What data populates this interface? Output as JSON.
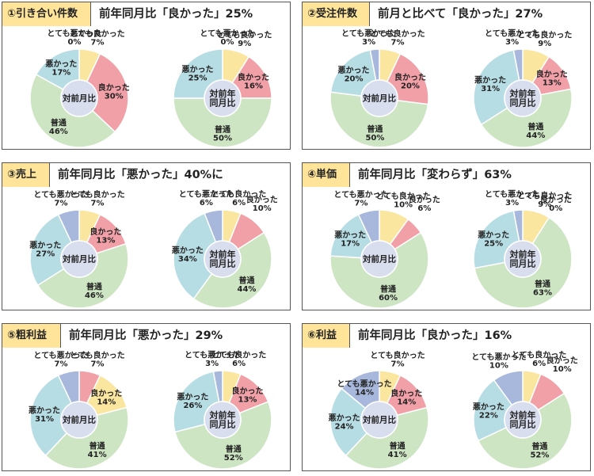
{
  "center_labels": {
    "single": "対前月比",
    "multi": [
      "対前年",
      "同月比"
    ]
  },
  "colors": {
    "very_bad": "#a7b8dc",
    "bad": "#b7dde4",
    "normal": "#cde5c3",
    "good": "#f2a0a8",
    "very_good": "#fbe6a0",
    "center": "#d9deef"
  },
  "panels": [
    {
      "badge": "①引き合い件数",
      "headline": "前年同月比「良かった」25%",
      "chart_data": [
        {
          "type": "pie",
          "center": "対前月比",
          "categories": [
            "とても良かった",
            "良かった",
            "普通",
            "悪かった",
            "とても悪かった"
          ],
          "values": [
            7,
            30,
            46,
            17,
            0
          ],
          "colors": [
            "very_good",
            "good",
            "normal",
            "bad",
            "very_bad"
          ]
        },
        {
          "type": "pie",
          "center": "対前年同月比",
          "categories": [
            "とても良かった",
            "良かった",
            "普通",
            "悪かった",
            "とても悪かった"
          ],
          "values": [
            9,
            16,
            50,
            25,
            0
          ],
          "colors": [
            "very_good",
            "good",
            "normal",
            "bad",
            "very_bad"
          ]
        }
      ]
    },
    {
      "badge": "②受注件数",
      "headline": "前月と比べて「良かった」27%",
      "chart_data": [
        {
          "type": "pie",
          "center": "対前月比",
          "categories": [
            "とても良かった",
            "良かった",
            "普通",
            "悪かった",
            "とても悪かった"
          ],
          "values": [
            7,
            20,
            50,
            20,
            3
          ],
          "colors": [
            "very_good",
            "good",
            "normal",
            "bad",
            "very_bad"
          ]
        },
        {
          "type": "pie",
          "center": "対前年同月比",
          "categories": [
            "とても良かった",
            "良かった",
            "普通",
            "悪かった",
            "とても悪かった"
          ],
          "values": [
            9,
            13,
            44,
            31,
            3
          ],
          "colors": [
            "very_good",
            "good",
            "normal",
            "bad",
            "very_bad"
          ]
        }
      ]
    },
    {
      "badge": "③売上",
      "headline": "前年同月比「悪かった」40%に",
      "chart_data": [
        {
          "type": "pie",
          "center": "対前月比",
          "categories": [
            "とても良かった",
            "良かった",
            "普通",
            "悪かった",
            "とても悪かった"
          ],
          "values": [
            7,
            13,
            46,
            27,
            7
          ],
          "colors": [
            "very_good",
            "good",
            "normal",
            "bad",
            "very_bad"
          ]
        },
        {
          "type": "pie",
          "center": "対前年同月比",
          "categories": [
            "とても良かった",
            "良かった",
            "普通",
            "悪かった",
            "とても悪かった"
          ],
          "values": [
            6,
            10,
            44,
            34,
            6
          ],
          "colors": [
            "very_good",
            "good",
            "normal",
            "bad",
            "very_bad"
          ]
        }
      ]
    },
    {
      "badge": "④単価",
      "headline": "前年同月比「変わらず」63%",
      "chart_data": [
        {
          "type": "pie",
          "center": "対前月比",
          "categories": [
            "とても良かった",
            "良かった",
            "普通",
            "悪かった",
            "とても悪かった"
          ],
          "values": [
            10,
            6,
            60,
            17,
            7
          ],
          "colors": [
            "very_good",
            "good",
            "normal",
            "bad",
            "very_bad"
          ]
        },
        {
          "type": "pie",
          "center": "対前年同月比",
          "categories": [
            "とても良かった",
            "良かった",
            "普通",
            "悪かった",
            "とても悪かった"
          ],
          "values": [
            9,
            0,
            63,
            25,
            3
          ],
          "colors": [
            "very_good",
            "good",
            "normal",
            "bad",
            "very_bad"
          ]
        }
      ]
    },
    {
      "badge": "⑤粗利益",
      "headline": "前年同月比「悪かった」29%",
      "chart_data": [
        {
          "type": "pie",
          "center": "対前月比",
          "categories": [
            "とても良かった",
            "良かった",
            "普通",
            "悪かった",
            "とても悪かった"
          ],
          "values": [
            7,
            14,
            41,
            31,
            7
          ],
          "colors": [
            "good",
            "very_good",
            "normal",
            "bad",
            "very_bad"
          ]
        },
        {
          "type": "pie",
          "center": "対前年同月比",
          "categories": [
            "とても良かった",
            "良かった",
            "普通",
            "悪かった",
            "とても悪かった"
          ],
          "values": [
            6,
            13,
            52,
            26,
            3
          ],
          "colors": [
            "very_good",
            "good",
            "normal",
            "bad",
            "very_bad"
          ]
        }
      ]
    },
    {
      "badge": "⑥利益",
      "headline": "前年同月比「良かった」16%",
      "chart_data": [
        {
          "type": "pie",
          "center": "対前月比",
          "categories": [
            "とても良かった",
            "良かった",
            "普通",
            "悪かった",
            "とても悪かった"
          ],
          "values": [
            7,
            14,
            41,
            24,
            14
          ],
          "colors": [
            "very_good",
            "good",
            "normal",
            "bad",
            "very_bad"
          ]
        },
        {
          "type": "pie",
          "center": "対前年同月比",
          "categories": [
            "とても良かった",
            "良かった",
            "普通",
            "悪かった",
            "とても悪かった"
          ],
          "values": [
            6,
            10,
            52,
            22,
            10
          ],
          "colors": [
            "very_good",
            "good",
            "normal",
            "bad",
            "very_bad"
          ]
        }
      ]
    }
  ]
}
